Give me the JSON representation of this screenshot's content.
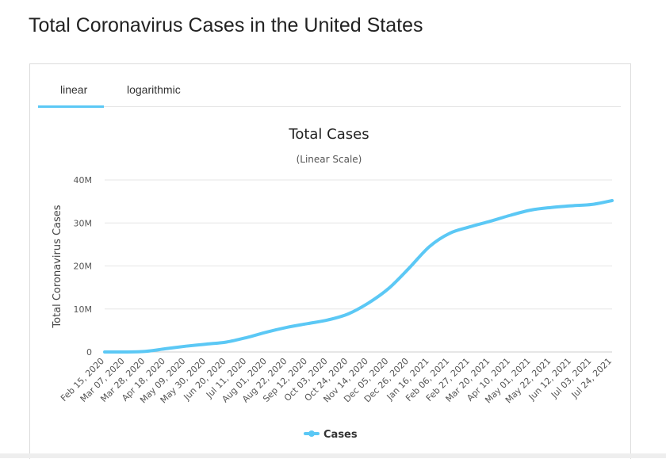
{
  "page": {
    "title": "Total Coronavirus Cases in the United States"
  },
  "tabs": [
    {
      "label": "linear",
      "active": true
    },
    {
      "label": "logarithmic",
      "active": false
    }
  ],
  "colors": {
    "series": "#5bc8f5",
    "tab_underline": "#5bc8f5",
    "grid": "#e6e6e6",
    "text": "#333333"
  },
  "chart_data": {
    "type": "line",
    "title": "Total Cases",
    "subtitle": "(Linear Scale)",
    "ylabel": "Total Coronavirus Cases",
    "xlabel": "",
    "ylim": [
      0,
      40000000
    ],
    "yticks": [
      0,
      10000000,
      20000000,
      30000000,
      40000000
    ],
    "ytick_labels": [
      "0",
      "10M",
      "20M",
      "30M",
      "40M"
    ],
    "grid": true,
    "legend": "bottom-center",
    "categories": [
      "Feb 15, 2020",
      "Mar 07, 2020",
      "Mar 28, 2020",
      "Apr 18, 2020",
      "May 09, 2020",
      "May 30, 2020",
      "Jun 20, 2020",
      "Jul 11, 2020",
      "Aug 01, 2020",
      "Aug 22, 2020",
      "Sep 12, 2020",
      "Oct 03, 2020",
      "Oct 24, 2020",
      "Nov 14, 2020",
      "Dec 05, 2020",
      "Dec 26, 2020",
      "Jan 16, 2021",
      "Feb 06, 2021",
      "Feb 27, 2021",
      "Mar 20, 2021",
      "Apr 10, 2021",
      "May 01, 2021",
      "May 22, 2021",
      "Jun 12, 2021",
      "Jul 03, 2021",
      "Jul 24, 2021"
    ],
    "series": [
      {
        "name": "Cases",
        "values": [
          15,
          250,
          140000,
          760000,
          1340000,
          1820000,
          2310000,
          3350000,
          4650000,
          5750000,
          6600000,
          7450000,
          8850000,
          11400000,
          14800000,
          19500000,
          24500000,
          27600000,
          29100000,
          30400000,
          31800000,
          33000000,
          33600000,
          34000000,
          34300000,
          35200000
        ]
      }
    ]
  }
}
